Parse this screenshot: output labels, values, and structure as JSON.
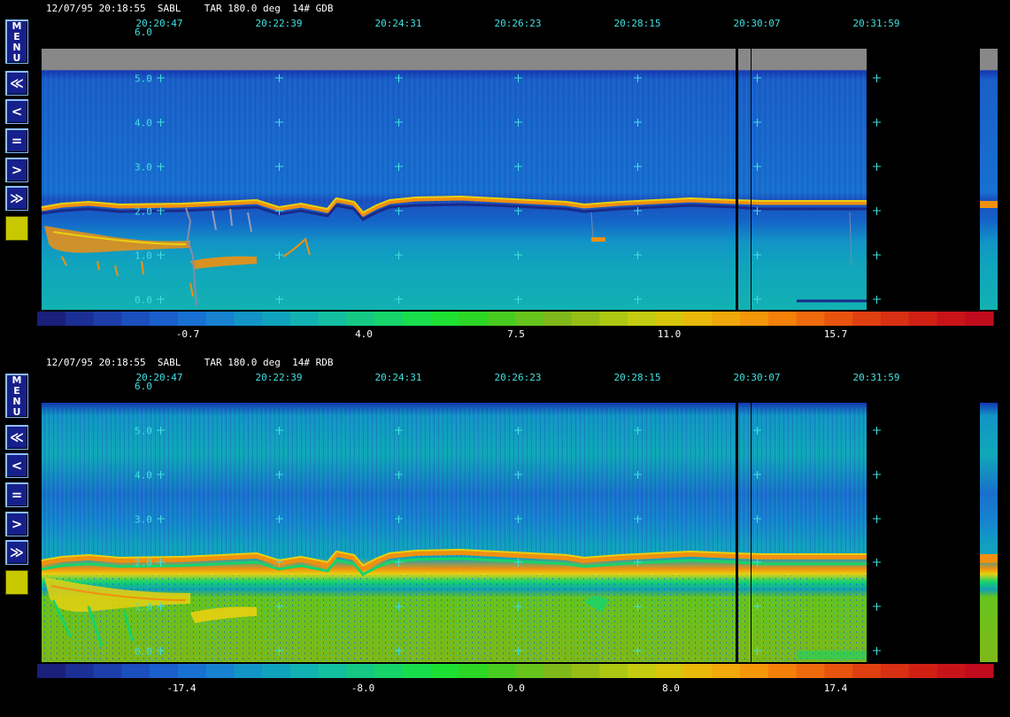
{
  "sidebar": {
    "menu_label": "MENU",
    "btn_first": "≪",
    "btn_prev": "<",
    "btn_equal": "=",
    "btn_next": ">",
    "btn_last": "≫"
  },
  "panels": [
    {
      "header": "12/07/95 20:18:55  SABL    TAR 180.0 deg  14# GDB",
      "top_value": "6.0",
      "time_labels": [
        "20:20:47",
        "20:22:39",
        "20:24:31",
        "20:26:23",
        "20:28:15",
        "20:30:07",
        "20:31:59"
      ],
      "y_labels": [
        "5.0",
        "4.0",
        "3.0",
        "2.0",
        "1.0",
        "0.0"
      ],
      "colorbar_labels": [
        "-0.7",
        "4.0",
        "7.5",
        "11.0",
        "15.7"
      ],
      "indicator_color": "#c8c800"
    },
    {
      "header": "12/07/95 20:18:55  SABL    TAR 180.0 deg  14# RDB",
      "top_value": "6.0",
      "time_labels": [
        "20:20:47",
        "20:22:39",
        "20:24:31",
        "20:26:23",
        "20:28:15",
        "20:30:07",
        "20:31:59"
      ],
      "y_labels": [
        "5.0",
        "4.0",
        "3.0",
        "2.0",
        "1.0",
        "0.0"
      ],
      "colorbar_labels": [
        "-17.4",
        "-8.0",
        "0.0",
        "8.0",
        "17.4"
      ],
      "indicator_color": "#c8c800"
    }
  ],
  "colorbar_colors": [
    "#1a1f7a",
    "#1b2f94",
    "#1c3eaa",
    "#1a4fbd",
    "#1a5fcc",
    "#1870d2",
    "#1682d0",
    "#1294c6",
    "#10a3bd",
    "#12b2b2",
    "#14bfa0",
    "#15c985",
    "#16d46a",
    "#18dd4c",
    "#1ee032",
    "#2cd624",
    "#48cc20",
    "#66c41c",
    "#7fb81a",
    "#96be16",
    "#adc812",
    "#c4cc10",
    "#d8c60c",
    "#e8b80a",
    "#f0a80a",
    "#f4960a",
    "#f4800a",
    "#ee6a0c",
    "#e8540e",
    "#e04010",
    "#d83012",
    "#d02014",
    "#c81418",
    "#c00c1c"
  ]
}
